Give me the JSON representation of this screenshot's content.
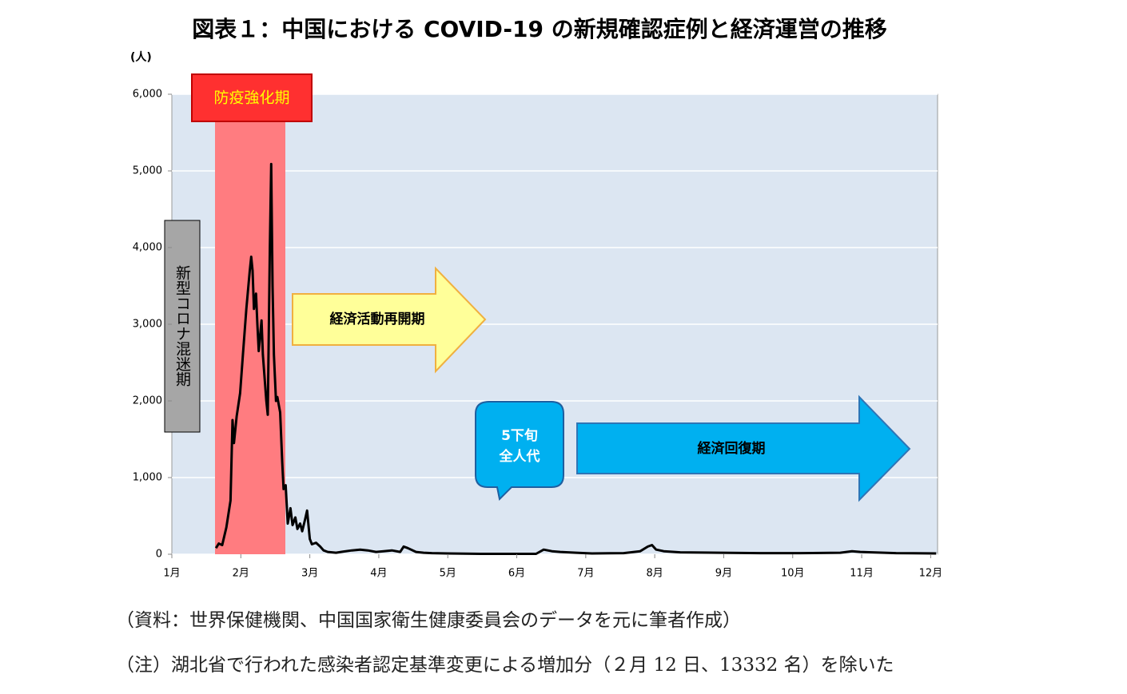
{
  "chart_data": {
    "type": "line",
    "title": "図表１：中国における COVID-19 の新規確認症例と経済運営の推移",
    "y_unit": "(人)",
    "annotations": [
      "防疫強化期",
      "新型コロナ混迷期",
      "経済活動再開期",
      "5下旬",
      "全人代",
      "経済回復期"
    ],
    "notes": [
      "（資料：世界保健機関、中国国家衛生健康委員会のデータを元に筆者作成）",
      "（注）湖北省で行われた感染者認定基準変更による増加分（２月 12 日、13332 名）を除いた"
    ],
    "xlim": [
      1,
      12.1
    ],
    "xticks": [
      {
        "value": 1,
        "label": "1月"
      },
      {
        "value": 2,
        "label": "2月"
      },
      {
        "value": 3,
        "label": "3月"
      },
      {
        "value": 4,
        "label": "4月"
      },
      {
        "value": 5,
        "label": "5月"
      },
      {
        "value": 6,
        "label": "6月"
      },
      {
        "value": 7,
        "label": "7月"
      },
      {
        "value": 8,
        "label": "8月"
      },
      {
        "value": 9,
        "label": "9月"
      },
      {
        "value": 10,
        "label": "10月"
      },
      {
        "value": 11,
        "label": "11月"
      },
      {
        "value": 12,
        "label": "12月"
      }
    ],
    "ylim": [
      0,
      6000
    ],
    "yticks": [
      0,
      {
        "value": 1000,
        "label": "1,000"
      },
      {
        "value": 2000,
        "label": "2,000"
      },
      {
        "value": 3000,
        "label": "3,000"
      },
      {
        "value": 4000,
        "label": "4,000"
      },
      {
        "value": 5000,
        "label": "5,000"
      },
      {
        "value": 6000,
        "label": "6,000"
      }
    ],
    "grid": true,
    "color": "#000000",
    "x": [
      1.64,
      1.68,
      1.73,
      1.79,
      1.85,
      1.88,
      1.9,
      1.94,
      1.99,
      2.03,
      2.08,
      2.13,
      2.15,
      2.17,
      2.19,
      2.22,
      2.24,
      2.26,
      2.3,
      2.32,
      2.37,
      2.39,
      2.42,
      2.44,
      2.46,
      2.48,
      2.51,
      2.53,
      2.57,
      2.6,
      2.62,
      2.65,
      2.68,
      2.72,
      2.75,
      2.79,
      2.82,
      2.86,
      2.89,
      2.93,
      2.96,
      3.0,
      3.03,
      3.09,
      3.15,
      3.2,
      3.26,
      3.38,
      3.49,
      3.61,
      3.73,
      3.84,
      3.96,
      4.07,
      4.19,
      4.31,
      4.36,
      4.42,
      4.54,
      4.65,
      4.77,
      5.0,
      5.47,
      5.93,
      6.28,
      6.39,
      6.51,
      6.63,
      6.86,
      7.09,
      7.55,
      7.79,
      7.9,
      7.96,
      8.02,
      8.13,
      8.37,
      8.95,
      9.53,
      10.11,
      10.69,
      10.86,
      10.98,
      11.15,
      11.5,
      12.08
    ],
    "values": [
      80,
      140,
      120,
      350,
      700,
      1750,
      1450,
      1800,
      2100,
      2600,
      3200,
      3700,
      3880,
      3700,
      3200,
      3400,
      3000,
      2650,
      3050,
      2600,
      2000,
      1820,
      4000,
      5090,
      3500,
      2600,
      2000,
      2050,
      1850,
      1200,
      850,
      900,
      400,
      600,
      380,
      480,
      330,
      400,
      300,
      450,
      570,
      200,
      130,
      150,
      100,
      50,
      30,
      20,
      35,
      50,
      60,
      50,
      30,
      40,
      50,
      30,
      100,
      80,
      30,
      20,
      15,
      10,
      5,
      5,
      5,
      60,
      40,
      30,
      20,
      10,
      15,
      40,
      100,
      120,
      60,
      40,
      25,
      20,
      15,
      15,
      20,
      40,
      30,
      25,
      15,
      10
    ]
  }
}
